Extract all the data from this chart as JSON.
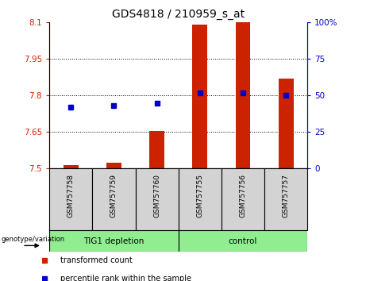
{
  "title": "GDS4818 / 210959_s_at",
  "samples": [
    "GSM757758",
    "GSM757759",
    "GSM757760",
    "GSM757755",
    "GSM757756",
    "GSM757757"
  ],
  "transformed_counts": [
    7.515,
    7.525,
    7.655,
    8.09,
    8.1,
    7.87
  ],
  "percentile_ranks": [
    42,
    43,
    45,
    52,
    52,
    50
  ],
  "ymin": 7.5,
  "ymax": 8.1,
  "yticks_left": [
    7.5,
    7.65,
    7.8,
    7.95,
    8.1
  ],
  "yticks_right": [
    0,
    25,
    50,
    75,
    100
  ],
  "bar_color": "#cc2200",
  "dot_color": "#0000cc",
  "left_axis_color": "#cc2200",
  "right_axis_color": "#0000cc",
  "bar_width": 0.35,
  "legend_red_label": "transformed count",
  "legend_blue_label": "percentile rank within the sample",
  "genotype_label": "genotype/variation",
  "group1_label": "TIG1 depletion",
  "group2_label": "control",
  "sample_box_color": "#d3d3d3",
  "group_box_color": "#90ee90"
}
